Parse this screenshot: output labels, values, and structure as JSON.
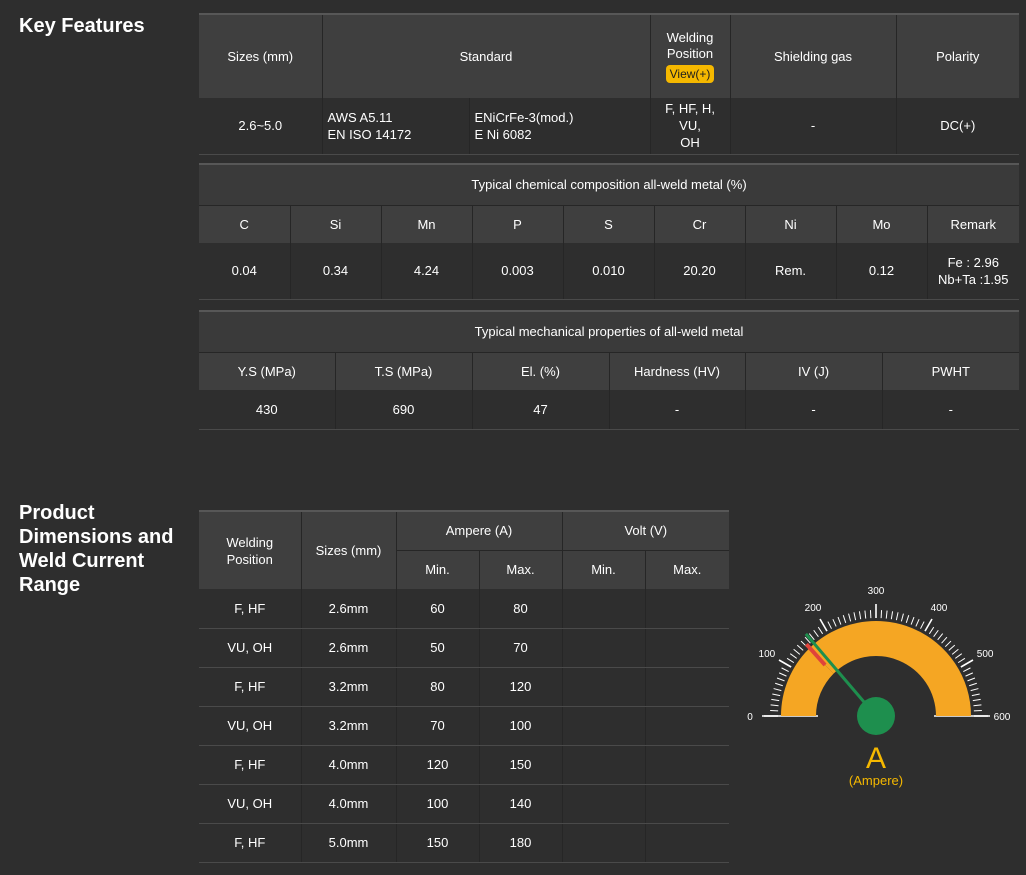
{
  "key_features": {
    "title": "Key Features",
    "headers": {
      "sizes": "Sizes (mm)",
      "standard": "Standard",
      "welding_position": "Welding Position",
      "view_button": "View(+)",
      "shielding_gas": "Shielding gas",
      "polarity": "Polarity"
    },
    "row": {
      "sizes": "2.6~5.0",
      "standard_1_line1": "AWS A5.11",
      "standard_1_line2": "EN ISO 14172",
      "standard_2_line1": "ENiCrFe-3(mod.)",
      "standard_2_line2": "E Ni 6082",
      "welding_position_line1": "F, HF, H, VU,",
      "welding_position_line2": "OH",
      "shielding_gas": "-",
      "polarity": "DC(+)"
    }
  },
  "chemical": {
    "title": "Typical chemical composition all-weld metal (%)",
    "headers": [
      "C",
      "Si",
      "Mn",
      "P",
      "S",
      "Cr",
      "Ni",
      "Mo",
      "Remark"
    ],
    "values": [
      "0.04",
      "0.34",
      "4.24",
      "0.003",
      "0.010",
      "20.20",
      "Rem.",
      "0.12"
    ],
    "remark_line1": "Fe : 2.96",
    "remark_line2": "Nb+Ta :1.95"
  },
  "mechanical": {
    "title": "Typical mechanical properties of all-weld metal",
    "headers": [
      "Y.S (MPa)",
      "T.S (MPa)",
      "El. (%)",
      "Hardness (HV)",
      "IV (J)",
      "PWHT"
    ],
    "values": [
      "430",
      "690",
      "47",
      "-",
      "-",
      "-"
    ]
  },
  "product": {
    "title_line1": "Product",
    "title_line2": "Dimensions and",
    "title_line3": "Weld Current",
    "title_line4": "Range",
    "headers": {
      "welding_position_line1": "Welding",
      "welding_position_line2": "Position",
      "sizes": "Sizes (mm)",
      "ampere": "Ampere (A)",
      "volt": "Volt (V)",
      "min": "Min.",
      "max": "Max."
    },
    "rows": [
      {
        "position": "F, HF",
        "size": "2.6mm",
        "amp_min": "60",
        "amp_max": "80",
        "volt_min": "",
        "volt_max": ""
      },
      {
        "position": "VU, OH",
        "size": "2.6mm",
        "amp_min": "50",
        "amp_max": "70",
        "volt_min": "",
        "volt_max": ""
      },
      {
        "position": "F, HF",
        "size": "3.2mm",
        "amp_min": "80",
        "amp_max": "120",
        "volt_min": "",
        "volt_max": ""
      },
      {
        "position": "VU, OH",
        "size": "3.2mm",
        "amp_min": "70",
        "amp_max": "100",
        "volt_min": "",
        "volt_max": ""
      },
      {
        "position": "F, HF",
        "size": "4.0mm",
        "amp_min": "120",
        "amp_max": "150",
        "volt_min": "",
        "volt_max": ""
      },
      {
        "position": "VU, OH",
        "size": "4.0mm",
        "amp_min": "100",
        "amp_max": "140",
        "volt_min": "",
        "volt_max": ""
      },
      {
        "position": "F, HF",
        "size": "5.0mm",
        "amp_min": "150",
        "amp_max": "180",
        "volt_min": "",
        "volt_max": ""
      }
    ]
  },
  "gauge": {
    "labels": [
      "0",
      "100",
      "200",
      "300",
      "400",
      "500",
      "600"
    ],
    "scale_min": 0,
    "scale_max": 600,
    "range_min": 150,
    "range_max": 600,
    "needle_value": 165,
    "unit_symbol": "A",
    "unit_name": "(Ampere)",
    "colors": {
      "arc": "#f5a623",
      "needle": "#1e8f4e",
      "hub": "#1e8f4e",
      "red_marker": "#e0433a",
      "accent": "#f5b800"
    }
  }
}
